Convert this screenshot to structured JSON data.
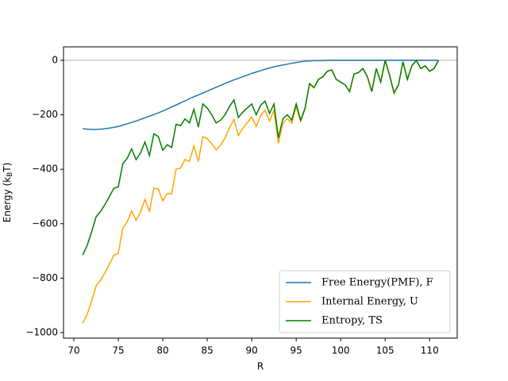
{
  "chart_data": {
    "type": "line",
    "xlabel": "R",
    "ylabel": [
      "Energy (k",
      "B",
      "T)"
    ],
    "x": [
      71,
      71.5,
      72,
      72.5,
      73,
      73.5,
      74,
      74.5,
      75,
      75.5,
      76,
      76.5,
      77,
      77.5,
      78,
      78.5,
      79,
      79.5,
      80,
      80.5,
      81,
      81.5,
      82,
      82.5,
      83,
      83.5,
      84,
      84.5,
      85,
      85.5,
      86,
      86.5,
      87,
      87.5,
      88,
      88.5,
      89,
      89.5,
      90,
      90.5,
      91,
      91.5,
      92,
      92.5,
      93,
      93.5,
      94,
      94.5,
      95,
      95.5,
      96,
      96.5,
      97,
      97.5,
      98,
      98.5,
      99,
      99.5,
      100,
      100.5,
      101,
      101.5,
      102,
      102.5,
      103,
      103.5,
      104,
      104.5,
      105,
      105.5,
      106,
      106.5,
      107,
      107.5,
      108,
      108.5,
      109,
      109.5,
      110,
      110.5,
      111
    ],
    "series": [
      {
        "name": "Free Energy(PMF), F",
        "color": "#1f77b4",
        "values": [
          -251,
          -253,
          -254,
          -254,
          -253,
          -251,
          -249,
          -246,
          -243,
          -238,
          -233,
          -228,
          -223,
          -217,
          -211,
          -205,
          -199,
          -193,
          -186,
          -179,
          -171,
          -164,
          -156,
          -149,
          -141,
          -134,
          -127,
          -120,
          -113,
          -106,
          -99,
          -92,
          -85,
          -78,
          -72,
          -66,
          -60,
          -54,
          -48,
          -43,
          -38,
          -33,
          -28,
          -24,
          -20,
          -17,
          -14,
          -11,
          -8,
          -5,
          -3,
          -2,
          -1,
          -1,
          -1,
          0,
          0,
          0,
          0,
          0,
          0,
          0,
          0,
          0,
          0,
          0,
          0,
          0,
          0,
          0,
          0,
          0,
          0,
          0,
          0,
          0,
          0,
          0,
          0,
          0,
          0
        ]
      },
      {
        "name": "Internal Energy, U",
        "color": "#ffa500",
        "values": [
          -966,
          -933,
          -884,
          -829,
          -808,
          -781,
          -749,
          -716,
          -708,
          -618,
          -593,
          -553,
          -588,
          -557,
          -511,
          -555,
          -469,
          -473,
          -516,
          -489,
          -491,
          -399,
          -396,
          -364,
          -371,
          -314,
          -372,
          -280,
          -288,
          -306,
          -329,
          -312,
          -285,
          -248,
          -217,
          -276,
          -250,
          -229,
          -208,
          -243,
          -203,
          -183,
          -223,
          -184,
          -305,
          -232,
          -214,
          -231,
          -168,
          -225,
          -178,
          -87,
          -101,
          -71,
          -61,
          -40,
          -35,
          -70,
          -80,
          -90,
          -115,
          -50,
          -45,
          -30,
          -60,
          -115,
          -30,
          -80,
          0,
          -55,
          -120,
          -90,
          -5,
          -70,
          -20,
          0,
          -30,
          -20,
          -40,
          -30,
          0
        ]
      },
      {
        "name": "Entropy, TS",
        "color": "#008000",
        "values": [
          -715,
          -680,
          -630,
          -575,
          -555,
          -530,
          -500,
          -470,
          -465,
          -380,
          -360,
          -325,
          -365,
          -340,
          -300,
          -350,
          -270,
          -280,
          -330,
          -310,
          -320,
          -235,
          -240,
          -215,
          -230,
          -180,
          -245,
          -160,
          -175,
          -200,
          -230,
          -220,
          -200,
          -170,
          -145,
          -210,
          -190,
          -175,
          -160,
          -200,
          -165,
          -150,
          -195,
          -160,
          -285,
          -215,
          -200,
          -220,
          -160,
          -220,
          -175,
          -85,
          -100,
          -70,
          -60,
          -40,
          -35,
          -70,
          -80,
          -90,
          -115,
          -50,
          -45,
          -30,
          -60,
          -115,
          -30,
          -80,
          0,
          -55,
          -120,
          -90,
          -5,
          -70,
          -20,
          0,
          -30,
          -20,
          -40,
          -30,
          0
        ]
      }
    ],
    "hline": 0,
    "xlim": [
      68.84,
      113.1
    ],
    "ylim": [
      -1020.4,
      49.6
    ],
    "xticks": [
      70,
      75,
      80,
      85,
      90,
      95,
      100,
      105,
      110
    ],
    "yticks": [
      {
        "value": -1000,
        "label": "−1000"
      },
      {
        "value": -800,
        "label": "−800"
      },
      {
        "value": -600,
        "label": "−600"
      },
      {
        "value": -400,
        "label": "−400"
      },
      {
        "value": -200,
        "label": "−200"
      },
      0
    ],
    "legend": "lower right"
  }
}
